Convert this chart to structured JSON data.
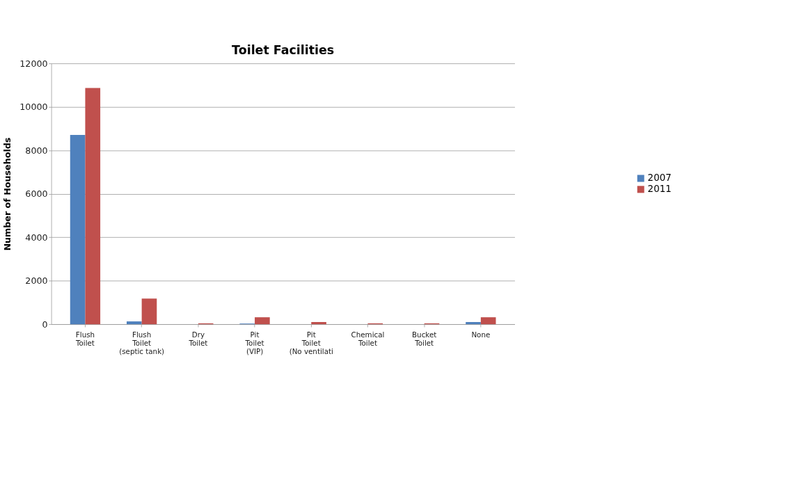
{
  "chart_data": {
    "type": "bar",
    "title": "Toilet Facilities",
    "ylabel": "Number of Households",
    "categories": [
      "Flush\nToilet",
      "Flush\nToilet\n(septic tank)",
      "Dry\nToilet",
      "Pit\nToilet\n(VIP)",
      "Pit\nToilet\n(No ventilati",
      "Chemical\nToilet",
      "Bucket\nToilet",
      "None"
    ],
    "series": [
      {
        "name": "2007",
        "color": "#4f81bd",
        "values": [
          8710,
          130,
          0,
          30,
          0,
          0,
          0,
          100
        ]
      },
      {
        "name": "2011",
        "color": "#c0504d",
        "values": [
          10870,
          1180,
          40,
          320,
          100,
          40,
          40,
          320
        ]
      }
    ],
    "ylim": [
      0,
      12000
    ],
    "yticks": [
      0,
      2000,
      4000,
      6000,
      8000,
      10000,
      12000
    ],
    "grid": "y",
    "legend": "right"
  }
}
